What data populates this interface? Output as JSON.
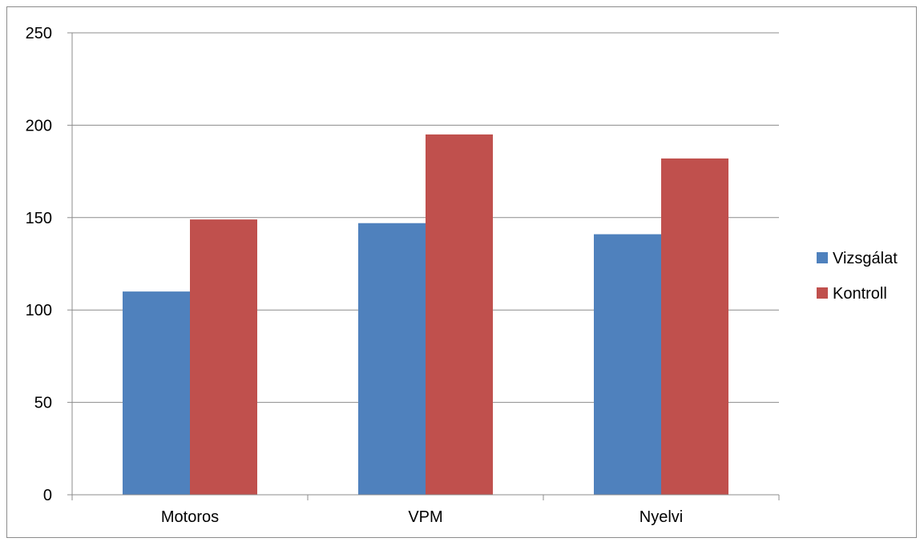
{
  "chart_data": {
    "type": "bar",
    "title": "",
    "xlabel": "",
    "ylabel": "",
    "categories": [
      "Motoros",
      "VPM",
      "Nyelvi"
    ],
    "series": [
      {
        "name": "Vizsgálat",
        "values": [
          110,
          147,
          141
        ],
        "color": "#4f81bd"
      },
      {
        "name": "Kontroll",
        "values": [
          149,
          195,
          182
        ],
        "color": "#c0504d"
      }
    ],
    "ylim": [
      0,
      250
    ],
    "yticks": [
      "0",
      "50",
      "100",
      "150",
      "200",
      "250"
    ],
    "grid": true,
    "legend_position": "right"
  }
}
